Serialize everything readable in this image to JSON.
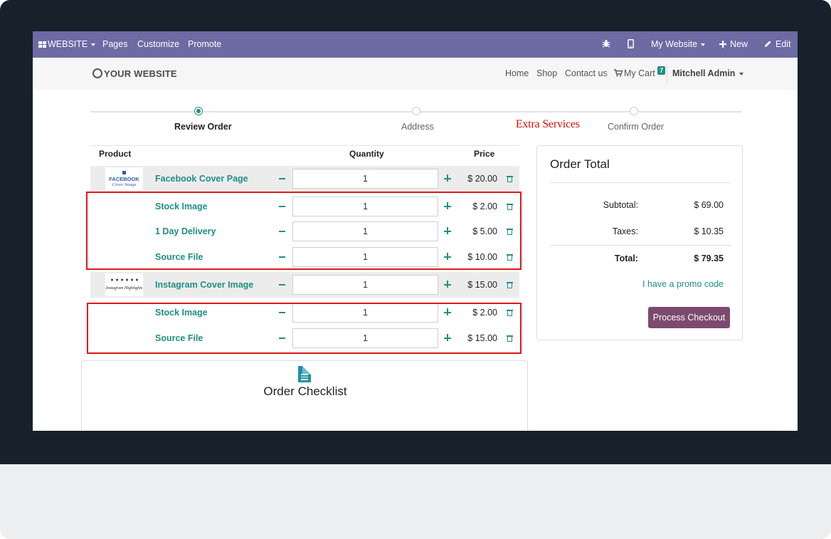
{
  "admin_bar": {
    "website_menu": "WEBSITE",
    "pages": "Pages",
    "customize": "Customize",
    "promote": "Promote",
    "my_website": "My Website",
    "new": "New",
    "edit": "Edit"
  },
  "site_header": {
    "logo_text": "YOUR WEBSITE",
    "nav": [
      "Home",
      "Shop",
      "Contact us"
    ],
    "cart_label": "My Cart",
    "cart_count": "7",
    "user": "Mitchell Admin"
  },
  "wizard": {
    "steps": [
      "Review Order",
      "Address",
      "Confirm Order"
    ],
    "active_step": "Review Order",
    "annotation": "Extra Services"
  },
  "cart": {
    "headers": {
      "product": "Product",
      "quantity": "Quantity",
      "price": "Price"
    },
    "rows": [
      {
        "name": "Facebook Cover Page",
        "qty": "1",
        "price": "$ 20.00",
        "type": "main",
        "thumb": {
          "line1": "FACEBOOK",
          "line2": "Cover Image"
        }
      },
      {
        "name": "Stock Image",
        "qty": "1",
        "price": "$ 2.00",
        "type": "service"
      },
      {
        "name": "1 Day Delivery",
        "qty": "1",
        "price": "$ 5.00",
        "type": "service"
      },
      {
        "name": "Source File",
        "qty": "1",
        "price": "$ 10.00",
        "type": "service"
      },
      {
        "name": "Instagram Cover Image",
        "qty": "1",
        "price": "$ 15.00",
        "type": "main",
        "thumb": {
          "line1": "Instagram Highlights"
        }
      },
      {
        "name": "Stock Image",
        "qty": "1",
        "price": "$ 2.00",
        "type": "service"
      },
      {
        "name": "Source File",
        "qty": "1",
        "price": "$ 15.00",
        "type": "service"
      }
    ]
  },
  "order_total": {
    "title": "Order Total",
    "subtotal_label": "Subtotal:",
    "subtotal": "$ 69.00",
    "taxes_label": "Taxes:",
    "taxes": "$ 10.35",
    "total_label": "Total:",
    "total": "$ 79.35",
    "promo": "I have a promo code",
    "checkout": "Process Checkout"
  },
  "checklist": {
    "title": "Order Checklist"
  },
  "colors": {
    "admin_bar": "#6d6aa4",
    "accent": "#1f8f85",
    "checkout_button": "#7c4a6e",
    "annotation_red": "#e00000"
  }
}
